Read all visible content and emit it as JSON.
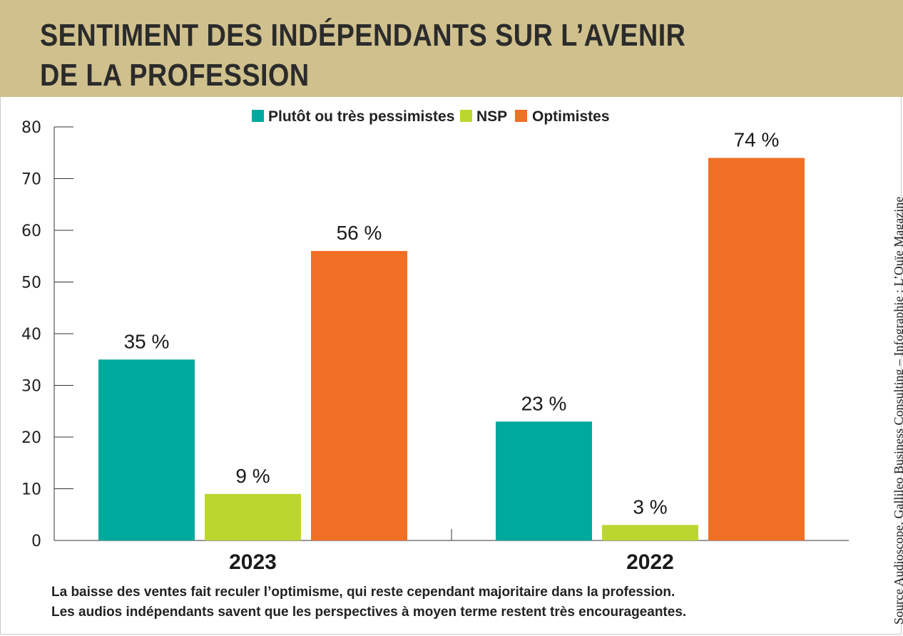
{
  "title_line1": "SENTIMENT DES INDÉPENDANTS SUR L’AVENIR",
  "title_line2": "DE LA PROFESSION",
  "caption_line1": "La baisse des ventes fait reculer l’optimisme, qui reste cependant majoritaire dans la profession.",
  "caption_line2": "Les audios indépendants savent que les perspectives à moyen terme restent très encourageantes.",
  "source": "Source Audioscope, Gallileo Business Consulting – Infographie : L’Ouïe Magazine",
  "colors": {
    "header_bg": "#cfc08d",
    "pessimistes": "#00a99d",
    "nsp": "#bcd630",
    "optimistes": "#f26f26"
  },
  "chart_data": {
    "type": "bar",
    "categories": [
      "2023",
      "2022"
    ],
    "series": [
      {
        "name": "Plutôt ou très pessimistes",
        "values": [
          35,
          23
        ],
        "labels": [
          "35 %",
          "23 %"
        ],
        "color": "#00a99d"
      },
      {
        "name": "NSP",
        "values": [
          9,
          3
        ],
        "labels": [
          "9 %",
          "3 %"
        ],
        "color": "#bcd630"
      },
      {
        "name": "Optimistes",
        "values": [
          56,
          74
        ],
        "labels": [
          "56 %",
          "74 %"
        ],
        "color": "#f26f26"
      }
    ],
    "yticks": [
      "0",
      "10",
      "20",
      "30",
      "40",
      "50",
      "60",
      "70",
      "80"
    ],
    "ylim": [
      0,
      80
    ],
    "legend_position": "top",
    "grid": false
  }
}
